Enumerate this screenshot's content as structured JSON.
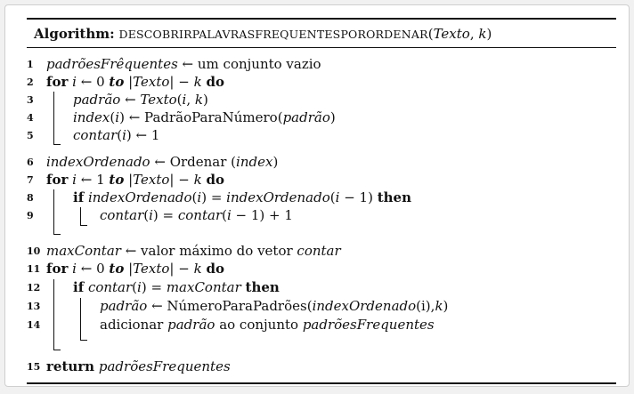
{
  "caption": {
    "label": "Algorithm:",
    "name": "DescobrirPalavrasFrequentesPorOrdenar",
    "open": "(",
    "arg1": "Texto",
    "comma": ",",
    "arg2": "k",
    "close": ")"
  },
  "lines": [
    {
      "n": "1",
      "segments": [
        {
          "t": "padrõesFrêquentes",
          "s": "it"
        },
        {
          "t": " ← um conjunto vazio",
          "s": ""
        }
      ]
    },
    {
      "n": "2",
      "segments": [
        {
          "t": "for",
          "s": "b"
        },
        {
          "t": " ",
          "s": ""
        },
        {
          "t": "i",
          "s": "it"
        },
        {
          "t": " ← 0 ",
          "s": ""
        },
        {
          "t": "to",
          "s": "bi"
        },
        {
          "t": " |",
          "s": ""
        },
        {
          "t": "Texto",
          "s": "it"
        },
        {
          "t": "| − ",
          "s": ""
        },
        {
          "t": "k",
          "s": "it"
        },
        {
          "t": " ",
          "s": ""
        },
        {
          "t": "do",
          "s": "b"
        }
      ]
    },
    {
      "n": "3",
      "segments": [
        {
          "t": "padrão",
          "s": "it"
        },
        {
          "t": " ← ",
          "s": ""
        },
        {
          "t": "Texto",
          "s": "it"
        },
        {
          "t": "(",
          "s": ""
        },
        {
          "t": "i",
          "s": "it"
        },
        {
          "t": ", ",
          "s": ""
        },
        {
          "t": "k",
          "s": "it"
        },
        {
          "t": ")",
          "s": ""
        }
      ]
    },
    {
      "n": "4",
      "segments": [
        {
          "t": "index",
          "s": "it"
        },
        {
          "t": "(",
          "s": ""
        },
        {
          "t": "i",
          "s": "it"
        },
        {
          "t": ") ← PadrãoParaNúmero(",
          "s": ""
        },
        {
          "t": "padrão",
          "s": "it"
        },
        {
          "t": ")",
          "s": ""
        }
      ]
    },
    {
      "n": "5",
      "segments": [
        {
          "t": "contar",
          "s": "it"
        },
        {
          "t": "(",
          "s": ""
        },
        {
          "t": "i",
          "s": "it"
        },
        {
          "t": ") ← 1",
          "s": ""
        }
      ]
    },
    {
      "n": "6",
      "segments": [
        {
          "t": "indexOrdenado",
          "s": "it"
        },
        {
          "t": " ← Ordenar (",
          "s": ""
        },
        {
          "t": "index",
          "s": "it"
        },
        {
          "t": ")",
          "s": ""
        }
      ]
    },
    {
      "n": "7",
      "segments": [
        {
          "t": "for",
          "s": "b"
        },
        {
          "t": " ",
          "s": ""
        },
        {
          "t": "i",
          "s": "it"
        },
        {
          "t": " ← 1 ",
          "s": ""
        },
        {
          "t": "to",
          "s": "bi"
        },
        {
          "t": " |",
          "s": ""
        },
        {
          "t": "Texto",
          "s": "it"
        },
        {
          "t": "| − ",
          "s": ""
        },
        {
          "t": "k",
          "s": "it"
        },
        {
          "t": " ",
          "s": ""
        },
        {
          "t": "do",
          "s": "b"
        }
      ]
    },
    {
      "n": "8",
      "segments": [
        {
          "t": "if",
          "s": "b"
        },
        {
          "t": " ",
          "s": ""
        },
        {
          "t": "indexOrdenado",
          "s": "it"
        },
        {
          "t": "(",
          "s": ""
        },
        {
          "t": "i",
          "s": "it"
        },
        {
          "t": ") = ",
          "s": ""
        },
        {
          "t": "indexOrdenado",
          "s": "it"
        },
        {
          "t": "(",
          "s": ""
        },
        {
          "t": "i",
          "s": "it"
        },
        {
          "t": " − 1) ",
          "s": ""
        },
        {
          "t": "then",
          "s": "b"
        }
      ]
    },
    {
      "n": "9",
      "segments": [
        {
          "t": "contar",
          "s": "it"
        },
        {
          "t": "(",
          "s": ""
        },
        {
          "t": "i",
          "s": "it"
        },
        {
          "t": ") = ",
          "s": ""
        },
        {
          "t": "contar",
          "s": "it"
        },
        {
          "t": "(",
          "s": ""
        },
        {
          "t": "i",
          "s": "it"
        },
        {
          "t": " − 1) + 1",
          "s": ""
        }
      ]
    },
    {
      "n": "10",
      "segments": [
        {
          "t": "maxContar",
          "s": "it"
        },
        {
          "t": " ← valor máximo do vetor ",
          "s": ""
        },
        {
          "t": "contar",
          "s": "it"
        }
      ]
    },
    {
      "n": "11",
      "segments": [
        {
          "t": "for",
          "s": "b"
        },
        {
          "t": " ",
          "s": ""
        },
        {
          "t": "i",
          "s": "it"
        },
        {
          "t": " ← 0 ",
          "s": ""
        },
        {
          "t": "to",
          "s": "bi"
        },
        {
          "t": " |",
          "s": ""
        },
        {
          "t": "Texto",
          "s": "it"
        },
        {
          "t": "| − ",
          "s": ""
        },
        {
          "t": "k",
          "s": "it"
        },
        {
          "t": " ",
          "s": ""
        },
        {
          "t": "do",
          "s": "b"
        }
      ]
    },
    {
      "n": "12",
      "segments": [
        {
          "t": "if",
          "s": "b"
        },
        {
          "t": " ",
          "s": ""
        },
        {
          "t": "contar",
          "s": "it"
        },
        {
          "t": "(",
          "s": ""
        },
        {
          "t": "i",
          "s": "it"
        },
        {
          "t": ") = ",
          "s": ""
        },
        {
          "t": "maxContar",
          "s": "it"
        },
        {
          "t": " ",
          "s": ""
        },
        {
          "t": "then",
          "s": "b"
        }
      ]
    },
    {
      "n": "13",
      "segments": [
        {
          "t": "padrão",
          "s": "it"
        },
        {
          "t": " ← NúmeroParaPadrões(",
          "s": ""
        },
        {
          "t": "indexOrdenado",
          "s": "it"
        },
        {
          "t": "(i),",
          "s": ""
        },
        {
          "t": "k",
          "s": "it"
        },
        {
          "t": ")",
          "s": ""
        }
      ]
    },
    {
      "n": "14",
      "segments": [
        {
          "t": "adicionar ",
          "s": ""
        },
        {
          "t": "padrão",
          "s": "it"
        },
        {
          "t": " ao conjunto ",
          "s": ""
        },
        {
          "t": "padrõesFrequentes",
          "s": "it"
        }
      ]
    },
    {
      "n": "15",
      "segments": [
        {
          "t": "return",
          "s": "b"
        },
        {
          "t": " ",
          "s": ""
        },
        {
          "t": "padrõesFrequentes",
          "s": "it"
        }
      ]
    }
  ]
}
